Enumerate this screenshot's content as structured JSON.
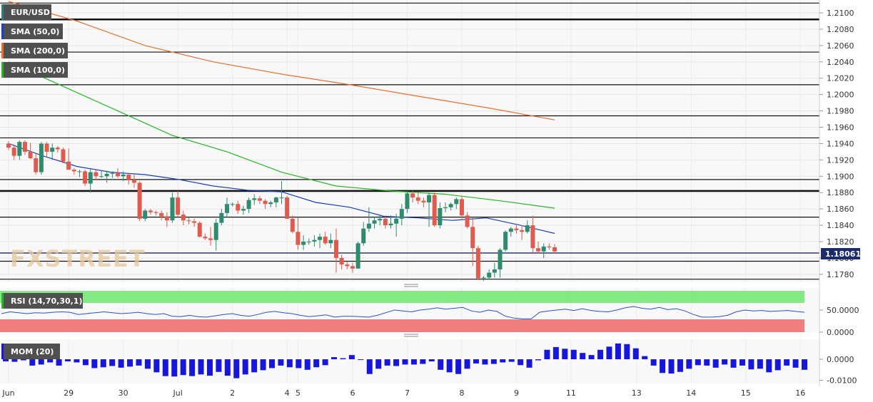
{
  "main_panel": {
    "badges": [
      {
        "label": "EUR/USD",
        "color": "#2e7d7d"
      },
      {
        "label": "SMA (50,0)",
        "color": "#1a3fbf"
      },
      {
        "label": "SMA (200,0)",
        "color": "#e8702a"
      },
      {
        "label": "SMA (100,0)",
        "color": "#22b822"
      }
    ],
    "watermark": "FXSTREET",
    "last_price_label": "1.18061"
  },
  "rsi_panel": {
    "badge": "RSI (14,70,30,1)"
  },
  "mom_panel": {
    "badge": "MOM (20)"
  },
  "colors": {
    "up": "#2e8b6e",
    "down": "#e05a4e",
    "sma50": "#1a3fbf",
    "sma200": "#e8702a",
    "sma100": "#22b822",
    "rsi_line": "#2a4fd6",
    "rsi_overbought": "#6ee86e",
    "rsi_oversold": "#f07070",
    "mom": "#1616dd",
    "badge_bg": "#505050"
  },
  "chart_data": [
    {
      "type": "candlestick",
      "title": "EUR/USD",
      "y_ticks": [
        "1.2100",
        "1.2080",
        "1.2060",
        "1.2040",
        "1.2020",
        "1.2000",
        "1.1980",
        "1.1960",
        "1.1940",
        "1.1920",
        "1.1900",
        "1.1880",
        "1.1860",
        "1.1840",
        "1.1820",
        "1.1800",
        "1.1780"
      ],
      "ylim": [
        1.1772,
        1.2114
      ],
      "x_ticks": [
        {
          "label": "Jun",
          "i": 0
        },
        {
          "label": "29",
          "i": 11
        },
        {
          "label": "30",
          "i": 21
        },
        {
          "label": "Jul",
          "i": 31
        },
        {
          "label": "2",
          "i": 41
        },
        {
          "label": "4",
          "i": 51
        },
        {
          "label": "5",
          "i": 53
        },
        {
          "label": "6",
          "i": 63
        },
        {
          "label": "7",
          "i": 73
        },
        {
          "label": "8",
          "i": 83
        },
        {
          "label": "9",
          "i": 93
        },
        {
          "label": "11",
          "i": 103
        },
        {
          "label": "13",
          "i": 115
        },
        {
          "label": "14",
          "i": 125
        },
        {
          "label": "15",
          "i": 135
        },
        {
          "label": "16",
          "i": 145
        }
      ],
      "horizontal_levels": [
        1.2112,
        1.2092,
        1.2052,
        1.2012,
        1.1974,
        1.1947,
        1.1896,
        1.1882,
        1.185,
        1.1806,
        1.1796,
        1.1774
      ],
      "last_price": 1.18061,
      "candles": [
        [
          1.194,
          1.1943,
          1.1932,
          1.1935
        ],
        [
          1.1935,
          1.1939,
          1.192,
          1.1925
        ],
        [
          1.1925,
          1.1944,
          1.192,
          1.1942
        ],
        [
          1.1942,
          1.1944,
          1.1926,
          1.193
        ],
        [
          1.193,
          1.1941,
          1.1921,
          1.1922
        ],
        [
          1.1922,
          1.1928,
          1.1902,
          1.1905
        ],
        [
          1.1905,
          1.1942,
          1.1902,
          1.194
        ],
        [
          1.194,
          1.1942,
          1.1924,
          1.193
        ],
        [
          1.193,
          1.194,
          1.192,
          1.1935
        ],
        [
          1.1935,
          1.1937,
          1.1929,
          1.1933
        ],
        [
          1.1933,
          1.1935,
          1.1916,
          1.1918
        ],
        [
          1.1918,
          1.1934,
          1.1908,
          1.1908
        ],
        [
          1.1908,
          1.191,
          1.1902,
          1.1906
        ],
        [
          1.1906,
          1.1908,
          1.1899,
          1.1906
        ],
        [
          1.1906,
          1.1908,
          1.1888,
          1.1891
        ],
        [
          1.1891,
          1.191,
          1.188,
          1.1905
        ],
        [
          1.1905,
          1.1908,
          1.1895,
          1.19
        ],
        [
          1.19,
          1.1907,
          1.1898,
          1.19
        ],
        [
          1.19,
          1.1907,
          1.1892,
          1.1903
        ],
        [
          1.1903,
          1.1906,
          1.1898,
          1.1904
        ],
        [
          1.1904,
          1.191,
          1.1898,
          1.19
        ],
        [
          1.19,
          1.1906,
          1.1894,
          1.1902
        ],
        [
          1.1902,
          1.1904,
          1.189,
          1.1896
        ],
        [
          1.1896,
          1.1902,
          1.1886,
          1.1892
        ],
        [
          1.1892,
          1.1894,
          1.1845,
          1.1848
        ],
        [
          1.1848,
          1.186,
          1.1845,
          1.1858
        ],
        [
          1.1858,
          1.186,
          1.1853,
          1.1856
        ],
        [
          1.1856,
          1.1858,
          1.1852,
          1.1855
        ],
        [
          1.1855,
          1.1858,
          1.1846,
          1.1851
        ],
        [
          1.1851,
          1.1856,
          1.1838,
          1.1846
        ],
        [
          1.1846,
          1.188,
          1.1843,
          1.1874
        ],
        [
          1.1874,
          1.1882,
          1.185,
          1.1853
        ],
        [
          1.1853,
          1.1858,
          1.184,
          1.1846
        ],
        [
          1.1846,
          1.1849,
          1.1841,
          1.1845
        ],
        [
          1.1845,
          1.1848,
          1.1838,
          1.1843
        ],
        [
          1.1843,
          1.1845,
          1.1825,
          1.1826
        ],
        [
          1.1826,
          1.183,
          1.1822,
          1.1824
        ],
        [
          1.1824,
          1.1838,
          1.1815,
          1.1822
        ],
        [
          1.1822,
          1.1848,
          1.1809,
          1.1843
        ],
        [
          1.1843,
          1.186,
          1.184,
          1.1855
        ],
        [
          1.1855,
          1.1874,
          1.185,
          1.1866
        ],
        [
          1.1866,
          1.1868,
          1.1863,
          1.1866
        ],
        [
          1.1866,
          1.187,
          1.1854,
          1.1858
        ],
        [
          1.1858,
          1.1864,
          1.1853,
          1.186
        ],
        [
          1.186,
          1.1874,
          1.1855,
          1.1871
        ],
        [
          1.1871,
          1.1878,
          1.1865,
          1.1873
        ],
        [
          1.1873,
          1.1876,
          1.1866,
          1.187
        ],
        [
          1.187,
          1.1872,
          1.186,
          1.1866
        ],
        [
          1.1866,
          1.187,
          1.1862,
          1.1868
        ],
        [
          1.1868,
          1.1875,
          1.1862,
          1.1874
        ],
        [
          1.1874,
          1.1894,
          1.1866,
          1.1874
        ],
        [
          1.1874,
          1.1876,
          1.1848,
          1.1848
        ],
        [
          1.1848,
          1.1852,
          1.183,
          1.1832
        ],
        [
          1.1832,
          1.185,
          1.181,
          1.1816
        ],
        [
          1.1816,
          1.1828,
          1.181,
          1.182
        ],
        [
          1.182,
          1.1824,
          1.1816,
          1.182
        ],
        [
          1.182,
          1.1828,
          1.1814,
          1.1822
        ],
        [
          1.1822,
          1.183,
          1.1812,
          1.1826
        ],
        [
          1.1826,
          1.1832,
          1.1816,
          1.1818
        ],
        [
          1.1818,
          1.183,
          1.1812,
          1.1822
        ],
        [
          1.1822,
          1.1836,
          1.1782,
          1.18
        ],
        [
          1.18,
          1.1804,
          1.1786,
          1.1792
        ],
        [
          1.1792,
          1.1796,
          1.1786,
          1.179
        ],
        [
          1.179,
          1.1794,
          1.1782,
          1.1787
        ],
        [
          1.1787,
          1.182,
          1.1787,
          1.1818
        ],
        [
          1.1818,
          1.1844,
          1.1815,
          1.1836
        ],
        [
          1.1836,
          1.1862,
          1.1832,
          1.1842
        ],
        [
          1.1842,
          1.185,
          1.1836,
          1.1846
        ],
        [
          1.1846,
          1.1852,
          1.184,
          1.1848
        ],
        [
          1.1848,
          1.1852,
          1.1836,
          1.184
        ],
        [
          1.184,
          1.1852,
          1.1836,
          1.1842
        ],
        [
          1.1842,
          1.1854,
          1.1826,
          1.1848
        ],
        [
          1.1848,
          1.1866,
          1.184,
          1.186
        ],
        [
          1.186,
          1.1882,
          1.1855,
          1.1879
        ],
        [
          1.1879,
          1.1882,
          1.1868,
          1.1874
        ],
        [
          1.1874,
          1.188,
          1.1866,
          1.187
        ],
        [
          1.187,
          1.1874,
          1.1862,
          1.1868
        ],
        [
          1.1868,
          1.188,
          1.1838,
          1.1877
        ],
        [
          1.1877,
          1.188,
          1.1838,
          1.184
        ],
        [
          1.184,
          1.1868,
          1.1836,
          1.1861
        ],
        [
          1.1861,
          1.1868,
          1.1856,
          1.1862
        ],
        [
          1.1862,
          1.1868,
          1.1858,
          1.1866
        ],
        [
          1.1866,
          1.1874,
          1.186,
          1.1872
        ],
        [
          1.1872,
          1.1876,
          1.1848,
          1.1852
        ],
        [
          1.1852,
          1.1856,
          1.1836,
          1.1838
        ],
        [
          1.1838,
          1.185,
          1.179,
          1.1812
        ],
        [
          1.1812,
          1.1815,
          1.1773,
          1.1775
        ],
        [
          1.1775,
          1.1778,
          1.1772,
          1.1776
        ],
        [
          1.1776,
          1.1786,
          1.1774,
          1.1782
        ],
        [
          1.1782,
          1.1794,
          1.1776,
          1.1786
        ],
        [
          1.1786,
          1.1812,
          1.1776,
          1.181
        ],
        [
          1.181,
          1.1834,
          1.1808,
          1.1832
        ],
        [
          1.1832,
          1.1838,
          1.1826,
          1.1836
        ],
        [
          1.1836,
          1.184,
          1.183,
          1.1834
        ],
        [
          1.1834,
          1.184,
          1.1822,
          1.1832
        ],
        [
          1.1832,
          1.1846,
          1.183,
          1.184
        ],
        [
          1.184,
          1.1852,
          1.1806,
          1.1812
        ],
        [
          1.1812,
          1.182,
          1.1806,
          1.1808
        ],
        [
          1.1808,
          1.1818,
          1.18,
          1.1814
        ],
        [
          1.1814,
          1.1818,
          1.181,
          1.1813
        ],
        [
          1.1813,
          1.1817,
          1.1806,
          1.1808
        ]
      ],
      "sma50": [
        1.194,
        1.1925,
        1.1912,
        1.1905,
        1.1902,
        1.1896,
        1.1888,
        1.1883,
        1.1881,
        1.1868,
        1.1862,
        1.1851,
        1.1849,
        1.1846,
        1.1849,
        1.184,
        1.183
      ],
      "sma200": [
        1.2114,
        1.209,
        1.206,
        1.204,
        1.2025,
        1.2012,
        1.1998,
        1.1984,
        1.1969
      ],
      "sma100": [
        1.204,
        1.201,
        1.198,
        1.195,
        1.193,
        1.1905,
        1.1888,
        1.1882,
        1.1878,
        1.187,
        1.1861
      ]
    },
    {
      "type": "line",
      "title": "RSI (14,70,30,1)",
      "y_ticks": [
        "50.0000",
        "0.0000"
      ],
      "ylim": [
        0,
        100
      ],
      "overbought": 70,
      "oversold": 30,
      "values": [
        42,
        46,
        44,
        42,
        44,
        43,
        45,
        46,
        45,
        40,
        42,
        44,
        46,
        44,
        42,
        43,
        45,
        42,
        40,
        42,
        36,
        35,
        38,
        35,
        34,
        37,
        40,
        42,
        38,
        36,
        40,
        45,
        47,
        44,
        42,
        38,
        35,
        37,
        39,
        34,
        36,
        36,
        35,
        34,
        38,
        44,
        50,
        48,
        46,
        50,
        52,
        55,
        52,
        54,
        56,
        48,
        45,
        50,
        47,
        36,
        32,
        30,
        30,
        45,
        48,
        50,
        52,
        49,
        53,
        49,
        47,
        46,
        50,
        55,
        58,
        54,
        52,
        56,
        51,
        53,
        48,
        40,
        34,
        34,
        35,
        38,
        46,
        50,
        48,
        49,
        47,
        48,
        49,
        47,
        45
      ]
    },
    {
      "type": "bar",
      "title": "MOM (20)",
      "y_ticks": [
        "0.0000",
        "-0.0100"
      ],
      "ylim": [
        -0.0115,
        0.0095
      ],
      "values": [
        -0.001,
        -0.0012,
        -0.0005,
        -0.003,
        -0.0025,
        -0.0015,
        -0.003,
        -0.001,
        -0.0015,
        -0.0028,
        -0.0042,
        -0.0038,
        -0.0032,
        -0.004,
        -0.0035,
        -0.003,
        -0.0045,
        -0.0062,
        -0.008,
        -0.0082,
        -0.0075,
        -0.008,
        -0.0072,
        -0.0078,
        -0.006,
        -0.0078,
        -0.009,
        -0.0072,
        -0.0062,
        -0.0052,
        -0.0042,
        -0.003,
        -0.0038,
        -0.0042,
        -0.005,
        -0.0038,
        -0.0028,
        0.001,
        0.0005,
        0.002,
        0.0,
        -0.007,
        -0.0045,
        -0.003,
        -0.0032,
        -0.0025,
        -0.0025,
        -0.0022,
        -0.001,
        -0.005,
        -0.0062,
        -0.007,
        -0.0045,
        -0.002,
        -0.0025,
        -0.0022,
        -0.0015,
        -0.0012,
        -0.0028,
        -0.004,
        -0.0005,
        0.0045,
        0.0058,
        0.005,
        0.0045,
        0.003,
        0.002,
        0.0045,
        0.006,
        0.0075,
        0.0072,
        0.0052,
        0.0015,
        -0.003,
        -0.0065,
        -0.0068,
        -0.006,
        -0.0045,
        -0.0028,
        -0.003,
        -0.004,
        -0.0025,
        -0.004,
        -0.003,
        -0.0048,
        -0.0045,
        -0.0062,
        -0.0052,
        -0.003,
        -0.004,
        -0.005
      ]
    }
  ]
}
